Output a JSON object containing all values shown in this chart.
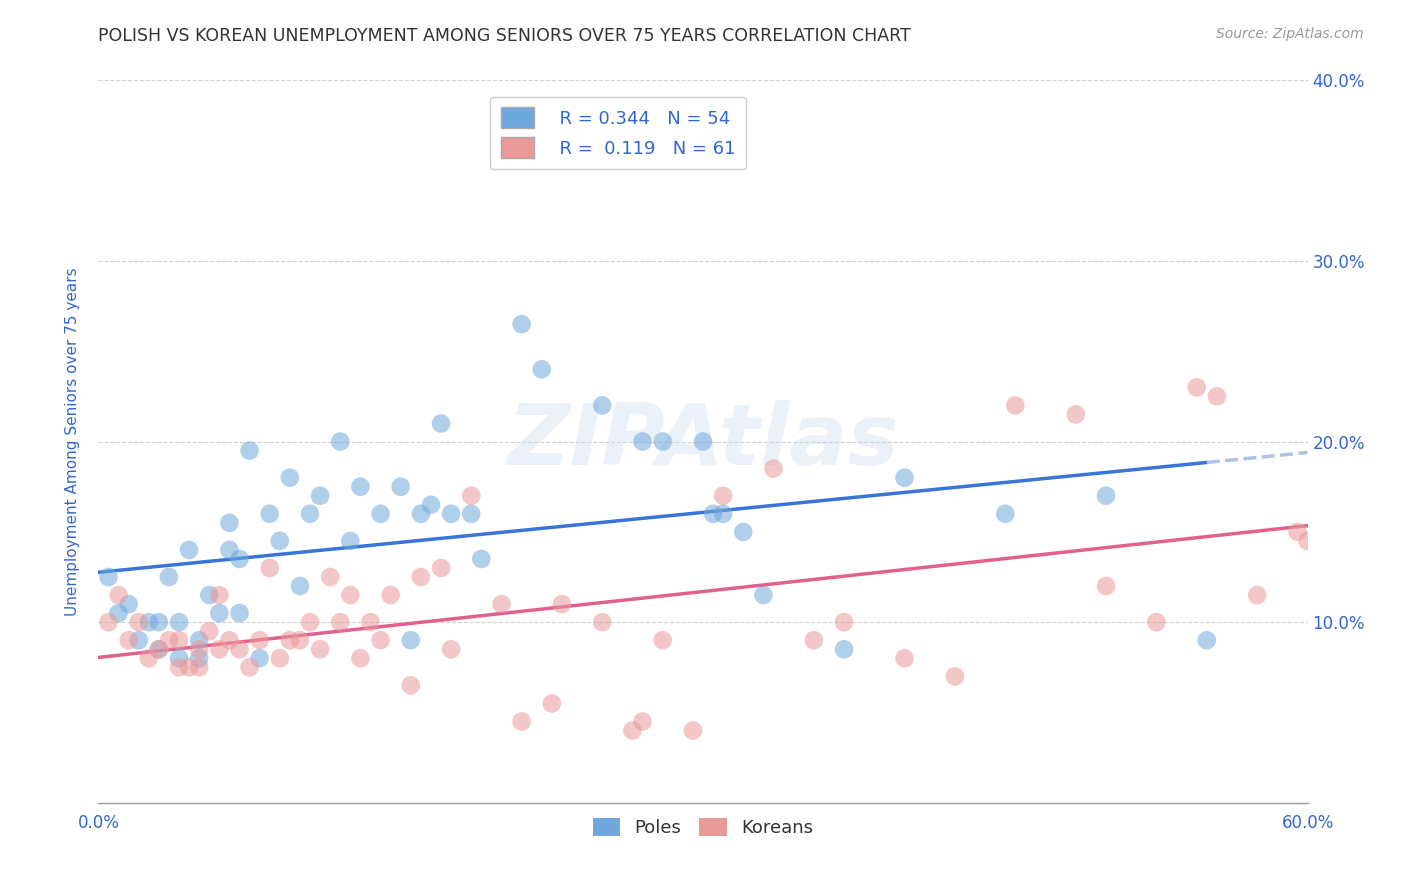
{
  "title": "POLISH VS KOREAN UNEMPLOYMENT AMONG SENIORS OVER 75 YEARS CORRELATION CHART",
  "source": "Source: ZipAtlas.com",
  "xlabel_vals": [
    0.0,
    0.1,
    0.2,
    0.3,
    0.4,
    0.5,
    0.6
  ],
  "xlabel_labels_visible": [
    "0.0%",
    "",
    "",
    "",
    "",
    "",
    "60.0%"
  ],
  "ylabel_vals": [
    0.0,
    0.1,
    0.2,
    0.3,
    0.4
  ],
  "ylabel_right_labels": [
    "",
    "10.0%",
    "20.0%",
    "30.0%",
    "40.0%"
  ],
  "poles_R": "0.344",
  "poles_N": "54",
  "koreans_R": "0.119",
  "koreans_N": "61",
  "poles_color": "#6fa8dc",
  "koreans_color": "#ea9999",
  "poles_line_color": "#3875d7",
  "koreans_line_color": "#e06090",
  "trend_extension_color": "#aac4e8",
  "watermark": "ZIPAtlas",
  "poles_data_x": [
    0.005,
    0.01,
    0.015,
    0.02,
    0.025,
    0.03,
    0.03,
    0.035,
    0.04,
    0.04,
    0.045,
    0.05,
    0.05,
    0.055,
    0.06,
    0.065,
    0.065,
    0.07,
    0.07,
    0.075,
    0.08,
    0.085,
    0.09,
    0.095,
    0.1,
    0.105,
    0.11,
    0.12,
    0.125,
    0.13,
    0.14,
    0.15,
    0.155,
    0.16,
    0.165,
    0.17,
    0.175,
    0.185,
    0.19,
    0.21,
    0.22,
    0.25,
    0.27,
    0.28,
    0.3,
    0.305,
    0.31,
    0.32,
    0.33,
    0.37,
    0.4,
    0.45,
    0.5,
    0.55
  ],
  "poles_data_y": [
    0.125,
    0.105,
    0.11,
    0.09,
    0.1,
    0.085,
    0.1,
    0.125,
    0.08,
    0.1,
    0.14,
    0.08,
    0.09,
    0.115,
    0.105,
    0.14,
    0.155,
    0.105,
    0.135,
    0.195,
    0.08,
    0.16,
    0.145,
    0.18,
    0.12,
    0.16,
    0.17,
    0.2,
    0.145,
    0.175,
    0.16,
    0.175,
    0.09,
    0.16,
    0.165,
    0.21,
    0.16,
    0.16,
    0.135,
    0.265,
    0.24,
    0.22,
    0.2,
    0.2,
    0.2,
    0.16,
    0.16,
    0.15,
    0.115,
    0.085,
    0.18,
    0.16,
    0.17,
    0.09
  ],
  "koreans_data_x": [
    0.005,
    0.01,
    0.015,
    0.02,
    0.025,
    0.03,
    0.035,
    0.04,
    0.04,
    0.045,
    0.05,
    0.05,
    0.055,
    0.06,
    0.06,
    0.065,
    0.07,
    0.075,
    0.08,
    0.085,
    0.09,
    0.095,
    0.1,
    0.105,
    0.11,
    0.115,
    0.12,
    0.125,
    0.13,
    0.135,
    0.14,
    0.145,
    0.155,
    0.16,
    0.17,
    0.175,
    0.185,
    0.2,
    0.21,
    0.225,
    0.23,
    0.25,
    0.265,
    0.27,
    0.28,
    0.295,
    0.31,
    0.335,
    0.355,
    0.37,
    0.4,
    0.425,
    0.455,
    0.485,
    0.5,
    0.525,
    0.545,
    0.555,
    0.575,
    0.595,
    0.6
  ],
  "koreans_data_y": [
    0.1,
    0.115,
    0.09,
    0.1,
    0.08,
    0.085,
    0.09,
    0.09,
    0.075,
    0.075,
    0.075,
    0.085,
    0.095,
    0.085,
    0.115,
    0.09,
    0.085,
    0.075,
    0.09,
    0.13,
    0.08,
    0.09,
    0.09,
    0.1,
    0.085,
    0.125,
    0.1,
    0.115,
    0.08,
    0.1,
    0.09,
    0.115,
    0.065,
    0.125,
    0.13,
    0.085,
    0.17,
    0.11,
    0.045,
    0.055,
    0.11,
    0.1,
    0.04,
    0.045,
    0.09,
    0.04,
    0.17,
    0.185,
    0.09,
    0.1,
    0.08,
    0.07,
    0.22,
    0.215,
    0.12,
    0.1,
    0.23,
    0.225,
    0.115,
    0.15,
    0.145
  ],
  "xlim": [
    0.0,
    0.6
  ],
  "ylim": [
    0.0,
    0.4
  ],
  "background_color": "#ffffff",
  "grid_color": "#cccccc",
  "title_color": "#333333",
  "axis_label_color": "#3366cc",
  "marker_size": 180,
  "marker_alpha": 0.55
}
